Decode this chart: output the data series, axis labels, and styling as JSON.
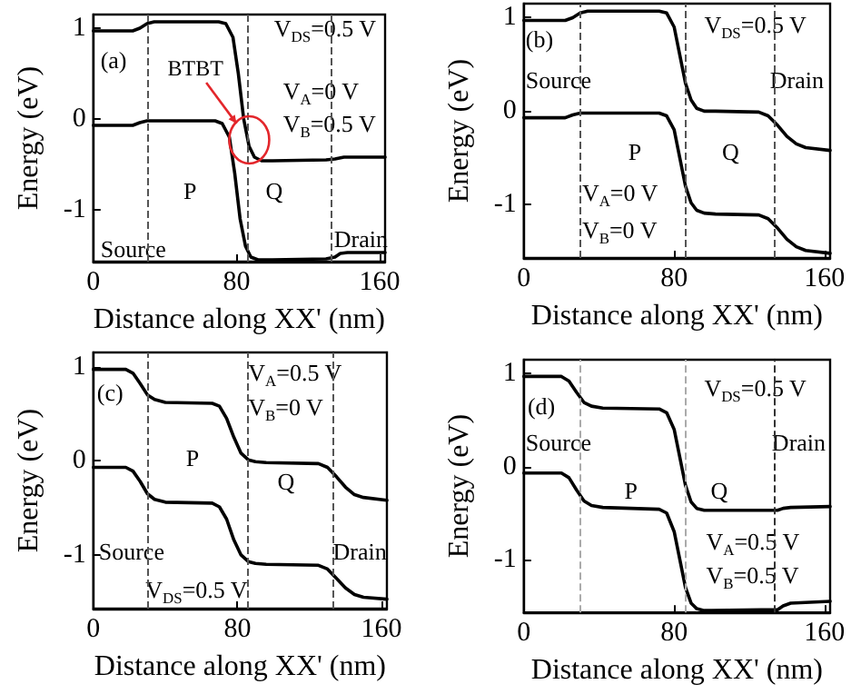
{
  "chart_data": [
    {
      "type": "line",
      "xlabel": "Distance along XX' (nm)",
      "ylabel": "Energy (eV)",
      "xlim": [
        0,
        163
      ],
      "ylim": [
        -1.57,
        1.15
      ],
      "xticks": [
        0,
        80,
        160
      ],
      "yticks": [
        -1,
        0,
        1
      ],
      "marker": "none",
      "line_style": "solid",
      "grid": false,
      "series": [
        {
          "color": "#000000",
          "x": [
            0,
            22,
            26,
            30,
            34,
            70,
            74,
            78,
            81,
            84,
            87,
            90,
            94,
            100,
            130,
            135,
            140,
            163
          ],
          "values": [
            0.97,
            0.97,
            1.0,
            1.05,
            1.07,
            1.07,
            1.05,
            0.9,
            0.5,
            0.0,
            -0.3,
            -0.42,
            -0.46,
            -0.46,
            -0.45,
            -0.44,
            -0.42,
            -0.42
          ]
        },
        {
          "color": "#000000",
          "x": [
            0,
            22,
            26,
            30,
            34,
            68,
            72,
            76,
            79,
            82,
            85,
            88,
            92,
            100,
            130,
            135,
            138,
            142,
            163
          ],
          "values": [
            -0.07,
            -0.07,
            -0.04,
            -0.02,
            -0.02,
            -0.02,
            -0.05,
            -0.2,
            -0.6,
            -1.1,
            -1.4,
            -1.52,
            -1.55,
            -1.55,
            -1.54,
            -1.52,
            -1.48,
            -1.47,
            -1.47
          ]
        }
      ],
      "ref_lines": [
        {
          "axis": "x",
          "value": 30,
          "color": "#555555",
          "line_style": "dashed"
        },
        {
          "axis": "x",
          "value": 86,
          "color": "#555555",
          "line_style": "dashed"
        },
        {
          "axis": "x",
          "value": 133,
          "color": "#555555",
          "line_style": "dashed"
        }
      ],
      "annotations": [
        "(a)",
        "V$_{DS}$=0.5 V",
        "V$_{A}$=0 V",
        "V$_{B}$=0.5 V",
        "P",
        "Q",
        "Source",
        "Drain",
        {
          "text": "BTBT",
          "x": 80,
          "y": -0.05
        }
      ]
    },
    {
      "type": "line",
      "xlabel": "Distance along XX' (nm)",
      "ylabel": "Energy (eV)",
      "xlim": [
        0,
        163
      ],
      "ylim": [
        -1.57,
        1.15
      ],
      "xticks": [
        0,
        80,
        160
      ],
      "yticks": [
        -1,
        0,
        1
      ],
      "marker": "none",
      "line_style": "solid",
      "grid": false,
      "series": [
        {
          "color": "#000000",
          "x": [
            0,
            22,
            26,
            30,
            34,
            72,
            76,
            80,
            83,
            86,
            89,
            92,
            96,
            102,
            125,
            130,
            135,
            140,
            145,
            150,
            163
          ],
          "values": [
            0.97,
            0.97,
            1.0,
            1.05,
            1.07,
            1.07,
            1.05,
            0.9,
            0.6,
            0.3,
            0.12,
            0.03,
            0,
            0,
            -0.01,
            -0.05,
            -0.15,
            -0.27,
            -0.35,
            -0.39,
            -0.42
          ]
        },
        {
          "color": "#000000",
          "x": [
            0,
            22,
            26,
            30,
            34,
            72,
            76,
            80,
            83,
            86,
            89,
            92,
            96,
            102,
            125,
            130,
            135,
            140,
            145,
            150,
            163
          ],
          "values": [
            -0.07,
            -0.07,
            -0.04,
            -0.02,
            -0.02,
            -0.02,
            -0.05,
            -0.2,
            -0.5,
            -0.8,
            -0.98,
            -1.06,
            -1.09,
            -1.1,
            -1.11,
            -1.15,
            -1.25,
            -1.37,
            -1.45,
            -1.49,
            -1.52
          ]
        }
      ],
      "ref_lines": [
        {
          "axis": "x",
          "value": 30,
          "color": "#555555",
          "line_style": "dashed"
        },
        {
          "axis": "x",
          "value": 86,
          "color": "#555555",
          "line_style": "dashed"
        },
        {
          "axis": "x",
          "value": 133,
          "color": "#555555",
          "line_style": "dashed"
        }
      ],
      "annotations": [
        "(b)",
        "V$_{DS}$=0.5 V",
        "Source",
        "Drain",
        "P",
        "Q",
        "V$_{A}$=0 V",
        "V$_{B}$=0 V"
      ]
    },
    {
      "type": "line",
      "xlabel": "Distance along XX' (nm)",
      "ylabel": "Energy (eV)",
      "xlim": [
        0,
        163
      ],
      "ylim": [
        -1.57,
        1.15
      ],
      "xticks": [
        0,
        80,
        160
      ],
      "yticks": [
        -1,
        0,
        1
      ],
      "marker": "none",
      "line_style": "solid",
      "grid": false,
      "series": [
        {
          "color": "#000000",
          "x": [
            0,
            18,
            22,
            26,
            30,
            34,
            40,
            66,
            70,
            74,
            78,
            82,
            86,
            90,
            96,
            125,
            130,
            135,
            140,
            145,
            150,
            163
          ],
          "values": [
            0.97,
            0.97,
            0.93,
            0.82,
            0.7,
            0.65,
            0.62,
            0.61,
            0.58,
            0.45,
            0.25,
            0.08,
            0.01,
            -0.01,
            -0.02,
            -0.03,
            -0.07,
            -0.17,
            -0.28,
            -0.36,
            -0.39,
            -0.42
          ]
        },
        {
          "color": "#000000",
          "x": [
            0,
            18,
            22,
            26,
            30,
            34,
            40,
            66,
            70,
            74,
            78,
            82,
            86,
            90,
            96,
            125,
            130,
            135,
            140,
            145,
            150,
            163
          ],
          "values": [
            -0.07,
            -0.07,
            -0.11,
            -0.22,
            -0.35,
            -0.41,
            -0.44,
            -0.45,
            -0.49,
            -0.62,
            -0.84,
            -1.0,
            -1.07,
            -1.09,
            -1.1,
            -1.11,
            -1.15,
            -1.25,
            -1.35,
            -1.42,
            -1.45,
            -1.47
          ]
        }
      ],
      "ref_lines": [
        {
          "axis": "x",
          "value": 30,
          "color": "#555555",
          "line_style": "dashed"
        },
        {
          "axis": "x",
          "value": 86,
          "color": "#555555",
          "line_style": "dashed"
        },
        {
          "axis": "x",
          "value": 133,
          "color": "#555555",
          "line_style": "dashed"
        }
      ],
      "annotations": [
        "(c)",
        "V$_{A}$=0.5 V",
        "V$_{B}$=0 V",
        "P",
        "Q",
        "Source",
        "Drain",
        "V$_{DS}$=0.5 V"
      ]
    },
    {
      "type": "line",
      "xlabel": "Distance along XX' (nm)",
      "ylabel": "Energy (eV)",
      "xlim": [
        0,
        163
      ],
      "ylim": [
        -1.57,
        1.15
      ],
      "xticks": [
        0,
        80,
        160
      ],
      "yticks": [
        -1,
        0,
        1
      ],
      "marker": "none",
      "line_style": "solid",
      "grid": false,
      "series": [
        {
          "color": "#000000",
          "x": [
            0,
            20,
            24,
            28,
            32,
            36,
            42,
            72,
            76,
            80,
            83,
            86,
            89,
            92,
            96,
            100,
            135,
            138,
            142,
            163
          ],
          "values": [
            0.97,
            0.97,
            0.92,
            0.8,
            0.69,
            0.65,
            0.63,
            0.62,
            0.58,
            0.4,
            0.1,
            -0.2,
            -0.38,
            -0.45,
            -0.47,
            -0.47,
            -0.47,
            -0.45,
            -0.44,
            -0.43
          ]
        },
        {
          "color": "#000000",
          "x": [
            0,
            20,
            24,
            28,
            32,
            36,
            42,
            72,
            76,
            80,
            83,
            86,
            89,
            92,
            96,
            100,
            135,
            138,
            142,
            163
          ],
          "values": [
            -0.07,
            -0.07,
            -0.12,
            -0.25,
            -0.37,
            -0.42,
            -0.44,
            -0.46,
            -0.5,
            -0.7,
            -1.0,
            -1.3,
            -1.47,
            -1.53,
            -1.55,
            -1.55,
            -1.54,
            -1.5,
            -1.47,
            -1.45
          ]
        }
      ],
      "ref_lines": [
        {
          "axis": "x",
          "value": 30,
          "color": "#aaaaaa",
          "line_style": "dashed"
        },
        {
          "axis": "x",
          "value": 86,
          "color": "#aaaaaa",
          "line_style": "dashed"
        },
        {
          "axis": "x",
          "value": 133,
          "color": "#333333",
          "line_style": "dashed"
        }
      ],
      "annotations": [
        "(d)",
        "V$_{DS}$=0.5 V",
        "Source",
        "Drain",
        "P",
        "Q",
        "V$_{A}$=0.5 V",
        "V$_{B}$=0.5 V"
      ]
    }
  ]
}
